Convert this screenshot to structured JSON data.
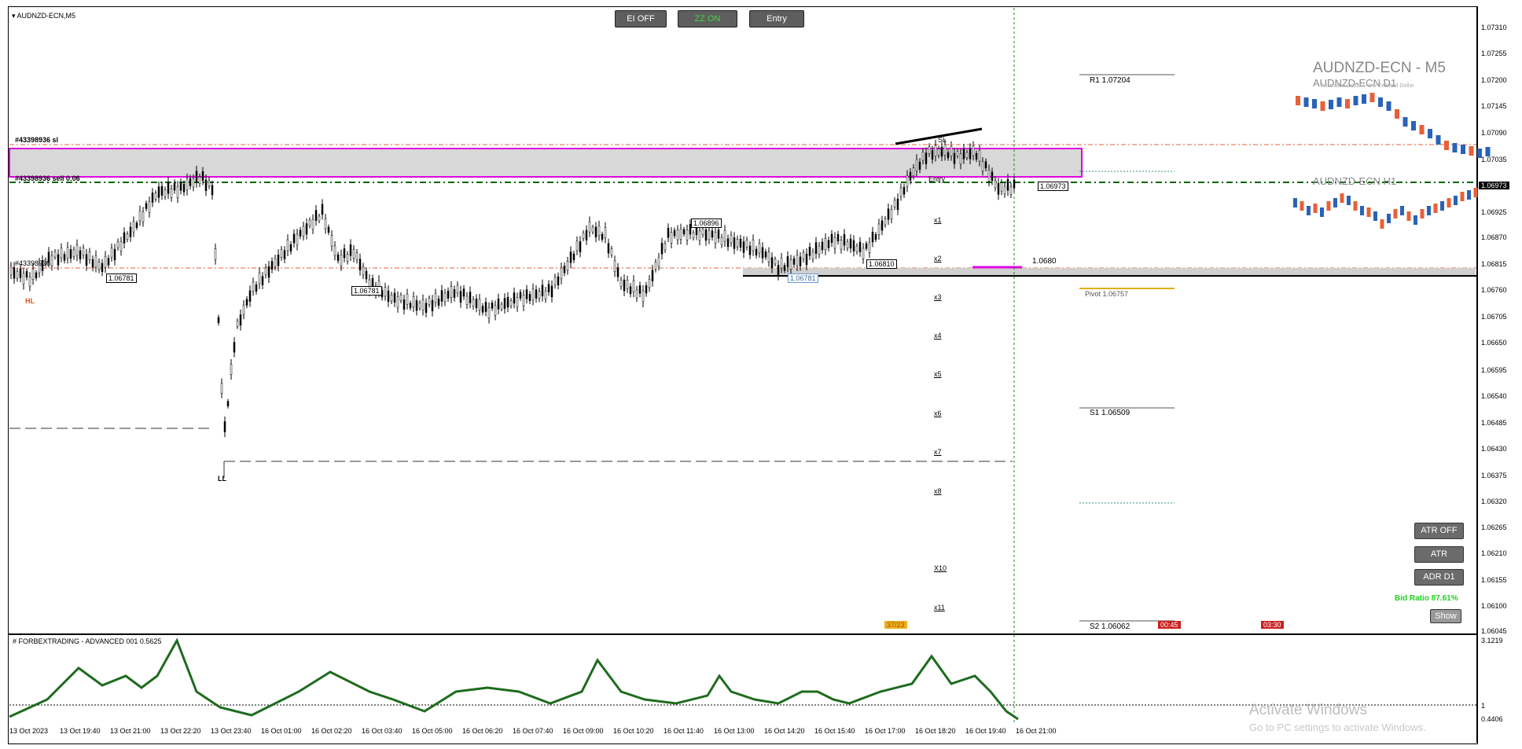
{
  "symbol_label": "AUDNZD-ECN,M5",
  "toolbar": {
    "ei_button": "EI OFF",
    "zz_button": "ZZ ON",
    "entry_button": "Entry"
  },
  "overlay": {
    "title": "AUDNZD-ECN - M5",
    "d1_label": "AUDNZD-ECN D1",
    "d1_sublabel": "Australian Dollar / New Zealand Dollar",
    "h1_label": "AUDNZD-ECN H1"
  },
  "order_labels": {
    "sl": "#43398936 sl",
    "sell": "#43398936 sell 0.06",
    "left": "#43398936"
  },
  "pivots": {
    "r1": "R1 1.07204",
    "pivot": "Pivot 1.06757",
    "s1": "S1 1.06509",
    "s2": "S2 1.06062",
    "line_1068": "1.0680"
  },
  "price_boxes": [
    "1.06781",
    "1.06781",
    "1.06896",
    "1.06810",
    "1.06781",
    "1.06973"
  ],
  "ladder": {
    "sl": "SL",
    "entry": "Entry",
    "levels": [
      "x1",
      "x2",
      "x3",
      "x4",
      "x5",
      "x6",
      "x7",
      "x8",
      "X10",
      "x11"
    ]
  },
  "tags": {
    "ll": "LL",
    "hl": "HL",
    "time_a": "00:45",
    "time_b": "03:30",
    "yellow": "37/23"
  },
  "right_buttons": {
    "atr_off": "ATR OFF",
    "atr": "ATR",
    "adr": "ADR D1",
    "show": "Show"
  },
  "bid_ratio": "Bid Ratio 87.61%",
  "indicator": {
    "title": "# FORBEXTRADING - ADVANCED 001 0.5625",
    "y_top": "3.1219",
    "y_mid": "1",
    "y_bottom": "0.4406"
  },
  "y_axis": [
    "1.07310",
    "1.07255",
    "1.07200",
    "1.07145",
    "1.07090",
    "1.07035",
    "1.06925",
    "1.06870",
    "1.06815",
    "1.06760",
    "1.06705",
    "1.06650",
    "1.06595",
    "1.06540",
    "1.06485",
    "1.06430",
    "1.06375",
    "1.06320",
    "1.06265",
    "1.06210",
    "1.06155",
    "1.06100",
    "1.06045"
  ],
  "current_price": "1.06973",
  "x_axis": [
    "13 Oct 2023",
    "13 Oct 19:40",
    "13 Oct 21:00",
    "13 Oct 22:20",
    "13 Oct 23:40",
    "16 Oct 01:00",
    "16 Oct 02:20",
    "16 Oct 03:40",
    "16 Oct 05:00",
    "16 Oct 06:20",
    "16 Oct 07:40",
    "16 Oct 09:00",
    "16 Oct 10:20",
    "16 Oct 11:40",
    "16 Oct 13:00",
    "16 Oct 14:20",
    "16 Oct 15:40",
    "16 Oct 17:00",
    "16 Oct 18:20",
    "16 Oct 19:40",
    "16 Oct 21:00"
  ],
  "watermark": {
    "line1": "Activate Windows",
    "line2": "Go to PC settings to activate Windows."
  },
  "colors": {
    "zone_border": "#e000e0",
    "zone_fill": "#d8d8d8",
    "sell_line": "#006400",
    "red_dashed": "#e8603a",
    "indicator_line": "#1f6b1f",
    "candle_up": "#2a62b8",
    "candle_down": "#e8603a"
  }
}
